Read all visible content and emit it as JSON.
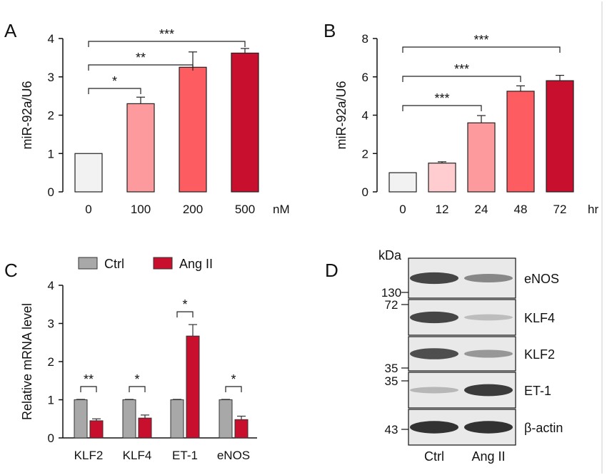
{
  "colors": {
    "axis": "#111111",
    "panelA": [
      "#f2f2f2",
      "#fd9a9d",
      "#fd5c60",
      "#c8102e"
    ],
    "panelB": [
      "#f2f2f2",
      "#ffcccf",
      "#fd9a9d",
      "#fd5c60",
      "#c8102e"
    ],
    "ctrl": "#a8a8a8",
    "angii": "#c8102e"
  },
  "chart_data": [
    {
      "panel": "A",
      "type": "bar",
      "categories": [
        "0",
        "100",
        "200",
        "500"
      ],
      "unit": "nM",
      "values": [
        1.0,
        2.3,
        3.25,
        3.62
      ],
      "errors": [
        0.0,
        0.17,
        0.4,
        0.12
      ],
      "ylabel": "miR-92a/U6",
      "yticks": [
        0,
        1,
        2,
        3,
        4
      ],
      "ylim": [
        0,
        4
      ],
      "significance": [
        {
          "from": 0,
          "to": 1,
          "label": "*"
        },
        {
          "from": 0,
          "to": 2,
          "label": "**"
        },
        {
          "from": 0,
          "to": 3,
          "label": "***"
        }
      ]
    },
    {
      "panel": "B",
      "type": "bar",
      "categories": [
        "0",
        "12",
        "24",
        "48",
        "72"
      ],
      "unit": "hr",
      "values": [
        1.0,
        1.5,
        3.6,
        5.25,
        5.8
      ],
      "errors": [
        0.0,
        0.07,
        0.38,
        0.28,
        0.28
      ],
      "ylabel": "miR-92a/U6",
      "yticks": [
        0,
        2,
        4,
        6,
        8
      ],
      "ylim": [
        0,
        8
      ],
      "significance": [
        {
          "from": 0,
          "to": 2,
          "label": "***"
        },
        {
          "from": 0,
          "to": 3,
          "label": "***"
        },
        {
          "from": 0,
          "to": 4,
          "label": "***"
        }
      ]
    },
    {
      "panel": "C",
      "type": "bar",
      "categories": [
        "KLF2",
        "KLF4",
        "ET-1",
        "eNOS"
      ],
      "series": [
        {
          "name": "Ctrl",
          "values": [
            1.0,
            1.0,
            1.0,
            1.0
          ],
          "errors": [
            0.01,
            0.01,
            0.01,
            0.01
          ]
        },
        {
          "name": "Ang II",
          "values": [
            0.45,
            0.52,
            2.67,
            0.48
          ],
          "errors": [
            0.05,
            0.08,
            0.3,
            0.09
          ]
        }
      ],
      "ylabel": "Relative mRNA level",
      "yticks": [
        0,
        1,
        2,
        3,
        4
      ],
      "ylim": [
        0,
        4
      ],
      "legend": "top",
      "significance": [
        "**",
        "*",
        "*",
        "*"
      ]
    }
  ],
  "panels": {
    "A": {
      "letter": "A"
    },
    "B": {
      "letter": "B"
    },
    "C": {
      "letter": "C"
    },
    "D": {
      "letter": "D"
    }
  },
  "blot": {
    "kda_label": "kDa",
    "markers": [
      "130",
      "72",
      "35",
      "35",
      "43"
    ],
    "rows": [
      {
        "label": "eNOS",
        "intensity": [
          0.85,
          0.5
        ]
      },
      {
        "label": "KLF4",
        "intensity": [
          0.85,
          0.22
        ]
      },
      {
        "label": "KLF2",
        "intensity": [
          0.8,
          0.42
        ]
      },
      {
        "label": "ET-1",
        "intensity": [
          0.25,
          0.9
        ]
      },
      {
        "label": "β-actin",
        "intensity": [
          0.95,
          0.95
        ]
      }
    ],
    "lanes": [
      "Ctrl",
      "Ang II"
    ]
  }
}
